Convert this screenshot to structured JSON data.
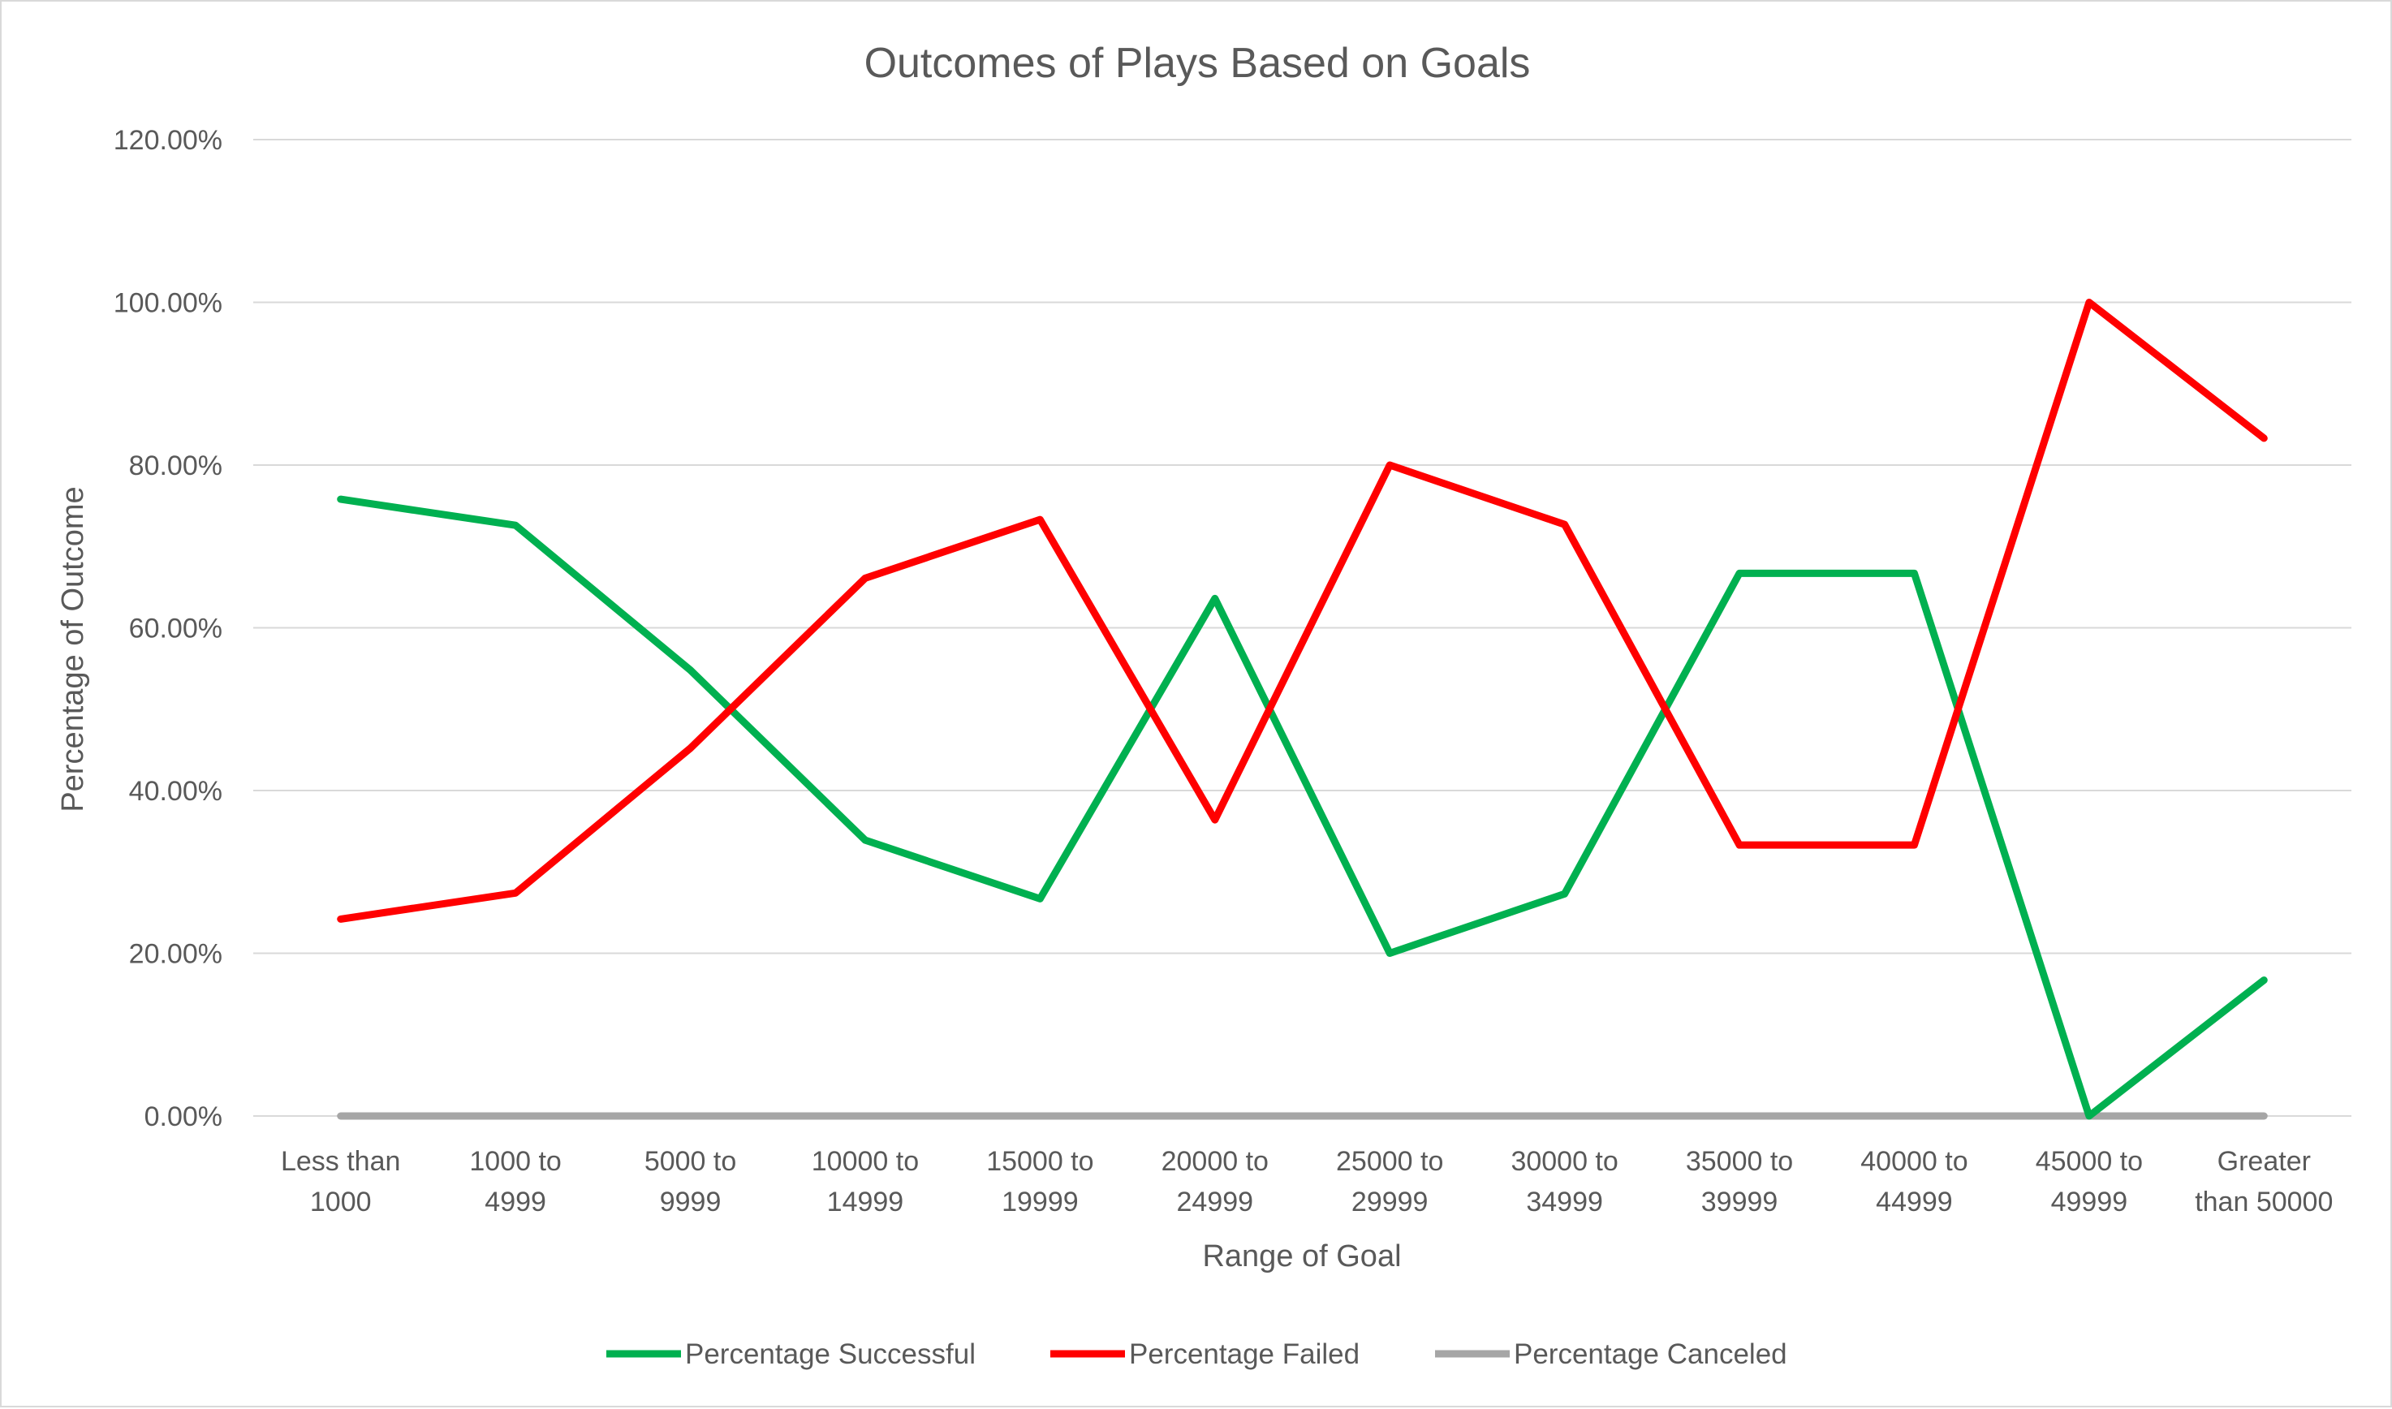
{
  "chart_data": {
    "type": "line",
    "title": "Outcomes of Plays Based on Goals",
    "xlabel": "Range of Goal",
    "ylabel": "Percentage of Outcome",
    "ylim": [
      0,
      1.2
    ],
    "y_ticks": [
      "0.00%",
      "20.00%",
      "40.00%",
      "60.00%",
      "80.00%",
      "100.00%",
      "120.00%"
    ],
    "categories": [
      [
        "Less than",
        "1000"
      ],
      [
        "1000 to",
        "4999"
      ],
      [
        "5000 to",
        "9999"
      ],
      [
        "10000 to",
        "14999"
      ],
      [
        "15000 to",
        "19999"
      ],
      [
        "20000 to",
        "24999"
      ],
      [
        "25000 to",
        "29999"
      ],
      [
        "30000 to",
        "34999"
      ],
      [
        "35000 to",
        "39999"
      ],
      [
        "40000 to",
        "44999"
      ],
      [
        "45000 to",
        "49999"
      ],
      [
        "Greater",
        "than 50000"
      ]
    ],
    "series": [
      {
        "name": "Percentage Successful",
        "color": "#00b050",
        "values": [
          0.758,
          0.726,
          0.548,
          0.339,
          0.267,
          0.636,
          0.2,
          0.273,
          0.667,
          0.667,
          0.0,
          0.167
        ]
      },
      {
        "name": "Percentage Failed",
        "color": "#ff0000",
        "values": [
          0.242,
          0.274,
          0.452,
          0.661,
          0.733,
          0.364,
          0.8,
          0.727,
          0.333,
          0.333,
          1.0,
          0.833
        ]
      },
      {
        "name": "Percentage Canceled",
        "color": "#a6a6a6",
        "values": [
          0,
          0,
          0,
          0,
          0,
          0,
          0,
          0,
          0,
          0,
          0,
          0
        ]
      }
    ],
    "grid": true,
    "legend_position": "bottom"
  }
}
